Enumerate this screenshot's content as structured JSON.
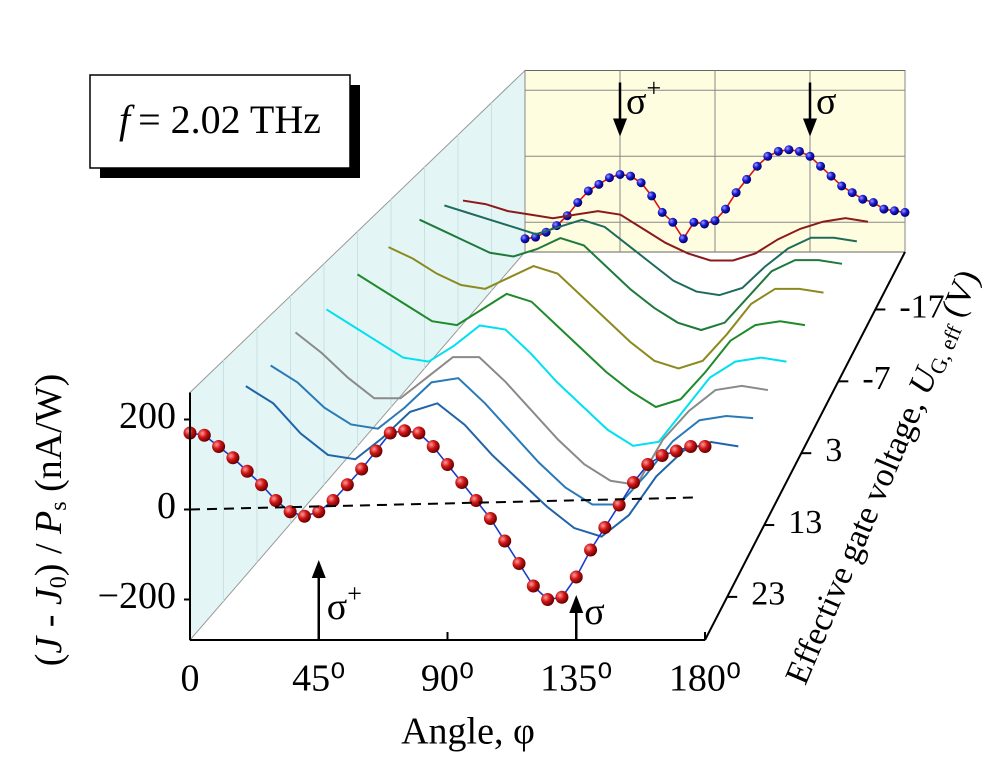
{
  "chart_data": {
    "type": "waterfall",
    "frequency_label": {
      "symbol": "f",
      "text": "= 2.02  THz"
    },
    "xlabel": "Angle,  φ",
    "ylabel_parts": [
      "(",
      "J",
      " - ",
      "J",
      "0",
      ") / ",
      "P",
      "s",
      " (nA/W)"
    ],
    "zlabel_parts": [
      "Effective gate voltage, ",
      "U",
      "G, eff",
      " (V)"
    ],
    "xlim": [
      0,
      180
    ],
    "xticks": [
      0,
      {
        "value": 45,
        "label": "45⁰"
      },
      {
        "value": 90,
        "label": "90⁰"
      },
      {
        "value": 135,
        "label": "135⁰"
      },
      {
        "value": 180,
        "label": "180⁰"
      }
    ],
    "ylim": [
      -290,
      260
    ],
    "yticks": [
      {
        "value": -200,
        "label": "−200"
      },
      0,
      200
    ],
    "zlim": [
      29,
      -25
    ],
    "zticks": [
      23,
      13,
      3,
      -7,
      -17
    ],
    "annotations": [
      {
        "text": "σ",
        "sup": "+",
        "x": 45,
        "plane": "front"
      },
      {
        "text": "σ",
        "x": 135,
        "plane": "front"
      },
      {
        "text": "σ",
        "sup": "+",
        "x": 45,
        "plane": "back"
      },
      {
        "text": "σ",
        "x": 135,
        "plane": "back"
      }
    ],
    "series": [
      {
        "z": -25,
        "color": "#1a1acc",
        "line_color": "#e01010",
        "marker": "dot",
        "x": [
          0,
          5,
          10,
          15,
          20,
          25,
          30,
          35,
          40,
          45,
          50,
          55,
          60,
          65,
          70,
          75,
          80,
          85,
          90,
          95,
          100,
          105,
          110,
          115,
          120,
          125,
          130,
          135,
          140,
          145,
          150,
          155,
          160,
          165,
          170,
          175,
          180
        ],
        "values": [
          -250,
          -245,
          -230,
          -210,
          -180,
          -140,
          -105,
          -85,
          -65,
          -55,
          -60,
          -80,
          -120,
          -170,
          -200,
          -250,
          -200,
          -205,
          -195,
          -160,
          -110,
          -70,
          -30,
          0,
          15,
          20,
          15,
          0,
          -30,
          -60,
          -90,
          -110,
          -130,
          -140,
          -160,
          -165,
          -170
        ]
      },
      {
        "z": -15,
        "color": "#8b1a1a",
        "x": [
          0,
          10,
          20,
          30,
          40,
          50,
          60,
          70,
          80,
          90,
          100,
          110,
          120,
          130,
          140,
          150,
          160,
          170,
          180
        ],
        "values": [
          60,
          50,
          30,
          20,
          10,
          20,
          30,
          20,
          -20,
          -60,
          -90,
          -110,
          -110,
          -90,
          -50,
          -20,
          0,
          10,
          0
        ]
      },
      {
        "z": -12,
        "color": "#1e6b5e",
        "x": [
          0,
          10,
          20,
          30,
          40,
          50,
          60,
          70,
          80,
          90,
          100,
          110,
          120,
          130,
          140,
          150,
          160,
          170,
          180
        ],
        "values": [
          100,
          80,
          60,
          40,
          20,
          40,
          60,
          40,
          -10,
          -60,
          -110,
          -140,
          -150,
          -130,
          -70,
          -20,
          10,
          10,
          0
        ]
      },
      {
        "z": -8,
        "color": "#1e7a3a",
        "x": [
          0,
          10,
          20,
          30,
          40,
          50,
          60,
          70,
          80,
          90,
          100,
          110,
          120,
          130,
          140,
          150,
          160,
          170,
          180
        ],
        "values": [
          130,
          100,
          70,
          40,
          30,
          50,
          80,
          60,
          0,
          -60,
          -110,
          -150,
          -170,
          -150,
          -80,
          -10,
          20,
          20,
          10
        ]
      },
      {
        "z": -3,
        "color": "#8c8a1e",
        "x": [
          0,
          10,
          20,
          30,
          40,
          50,
          60,
          70,
          80,
          90,
          100,
          110,
          120,
          130,
          140,
          150,
          160,
          170,
          180
        ],
        "values": [
          140,
          110,
          70,
          40,
          30,
          60,
          90,
          70,
          10,
          -50,
          -110,
          -160,
          -180,
          -160,
          -90,
          -10,
          30,
          30,
          20
        ]
      },
      {
        "z": 2,
        "color": "#1e8a2a",
        "x": [
          0,
          10,
          20,
          30,
          40,
          50,
          60,
          70,
          80,
          90,
          100,
          110,
          120,
          130,
          140,
          150,
          160,
          170,
          180
        ],
        "values": [
          150,
          110,
          70,
          30,
          20,
          60,
          100,
          80,
          20,
          -40,
          -100,
          -150,
          -190,
          -170,
          -100,
          -20,
          20,
          30,
          20
        ]
      },
      {
        "z": 7,
        "color": "#00e0f0",
        "x": [
          0,
          10,
          20,
          30,
          40,
          50,
          60,
          70,
          80,
          90,
          100,
          110,
          120,
          130,
          140,
          150,
          160,
          170,
          180
        ],
        "values": [
          140,
          100,
          60,
          20,
          10,
          50,
          100,
          90,
          30,
          -40,
          -100,
          -160,
          -200,
          -190,
          -110,
          -30,
          10,
          20,
          10
        ]
      },
      {
        "z": 12,
        "color": "#8a8a8a",
        "x": [
          0,
          10,
          20,
          30,
          40,
          50,
          60,
          70,
          80,
          90,
          100,
          110,
          120,
          130,
          140,
          150,
          160,
          170,
          180
        ],
        "values": [
          160,
          110,
          50,
          0,
          0,
          50,
          100,
          100,
          40,
          -30,
          -100,
          -160,
          -200,
          -210,
          -100,
          -30,
          20,
          30,
          20
        ]
      },
      {
        "z": 16,
        "color": "#2a7ab8",
        "x": [
          0,
          10,
          20,
          30,
          40,
          50,
          60,
          70,
          80,
          90,
          100,
          110,
          120,
          130,
          140,
          150,
          160,
          170,
          180
        ],
        "values": [
          140,
          100,
          40,
          0,
          -10,
          40,
          100,
          110,
          50,
          -20,
          -90,
          -150,
          -190,
          -190,
          -120,
          -40,
          10,
          20,
          15
        ]
      },
      {
        "z": 20,
        "color": "#1f64a8",
        "x": [
          0,
          10,
          20,
          30,
          40,
          50,
          60,
          70,
          80,
          90,
          100,
          110,
          120,
          130,
          140,
          150,
          160,
          170,
          180
        ],
        "values": [
          150,
          110,
          40,
          -10,
          -20,
          30,
          90,
          110,
          60,
          -10,
          -70,
          -130,
          -180,
          -200,
          -150,
          -60,
          0,
          20,
          10
        ]
      },
      {
        "z": 29,
        "color": "#cc1010",
        "line_color": "#1a3acc",
        "marker": "dot",
        "x": [
          0,
          5,
          10,
          15,
          20,
          25,
          30,
          35,
          40,
          45,
          50,
          55,
          60,
          65,
          70,
          75,
          80,
          85,
          90,
          95,
          100,
          105,
          110,
          115,
          120,
          125,
          130,
          135,
          140,
          145,
          150,
          155,
          160,
          165,
          170,
          175,
          180
        ],
        "values": [
          170,
          165,
          140,
          115,
          85,
          55,
          20,
          -5,
          -15,
          -5,
          20,
          55,
          90,
          130,
          170,
          175,
          170,
          140,
          100,
          60,
          20,
          -20,
          -70,
          -120,
          -170,
          -200,
          -195,
          -150,
          -90,
          -40,
          10,
          60,
          100,
          120,
          130,
          140,
          140
        ]
      }
    ]
  }
}
